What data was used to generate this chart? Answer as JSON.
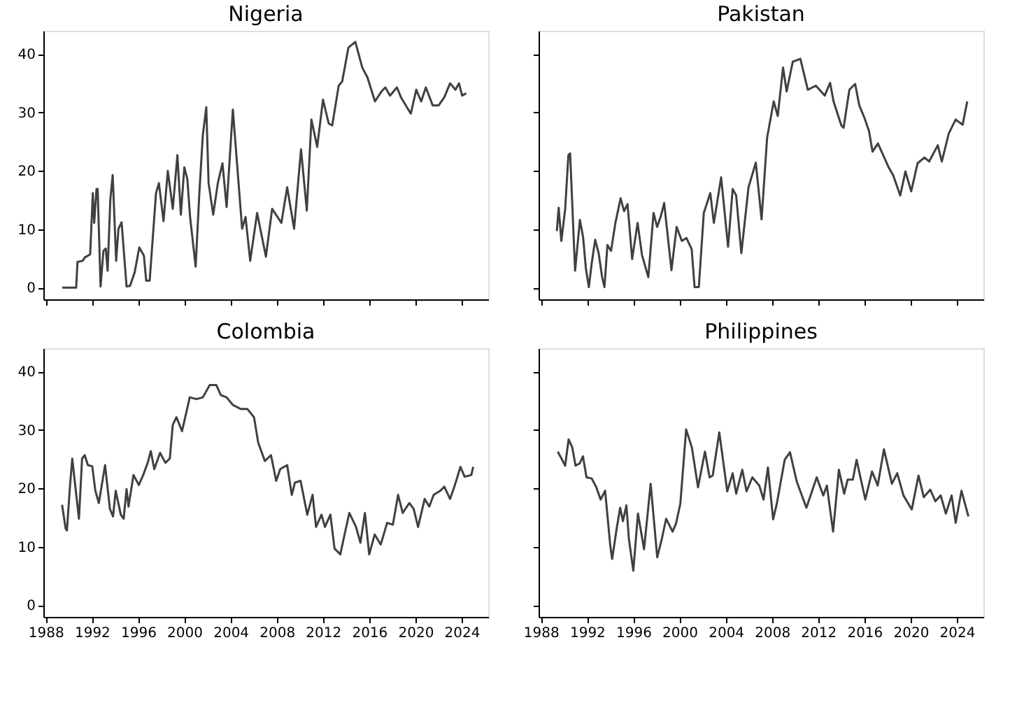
{
  "chart_data": [
    {
      "type": "line",
      "title": "Nigeria",
      "x": [
        1989.43,
        1990.64,
        1990.75,
        1991.2,
        1991.4,
        1991.85,
        1992.08,
        1992.2,
        1992.4,
        1992.5,
        1992.75,
        1993.0,
        1993.2,
        1993.36,
        1993.6,
        1993.8,
        1994.1,
        1994.3,
        1994.57,
        1995.0,
        1995.3,
        1995.7,
        1996.1,
        1996.5,
        1996.7,
        1997.0,
        1997.55,
        1997.8,
        1998.2,
        1998.57,
        1999.0,
        1999.4,
        1999.7,
        2000.0,
        2000.26,
        2000.5,
        2000.98,
        2001.3,
        2001.6,
        2001.9,
        2002.1,
        2002.5,
        2002.9,
        2003.3,
        2003.66,
        2004.2,
        2005.0,
        2005.3,
        2005.7,
        2006.3,
        2007.06,
        2007.6,
        2008.4,
        2008.9,
        2009.5,
        2010.1,
        2010.6,
        2011.0,
        2011.5,
        2012.0,
        2012.5,
        2012.8,
        2013.36,
        2013.66,
        2014.2,
        2014.8,
        2015.4,
        2015.85,
        2016.5,
        2017.06,
        2017.4,
        2017.8,
        2018.4,
        2018.75,
        2019.6,
        2020.07,
        2020.5,
        2020.9,
        2021.5,
        2022.0,
        2022.5,
        2023.0,
        2023.47,
        2023.77,
        2024.04,
        2024.4
      ],
      "series": [
        {
          "color": "#404040",
          "values": [
            0,
            0,
            4.4,
            4.6,
            5.2,
            5.7,
            16.2,
            11.1,
            16.9,
            16.9,
            0.2,
            6.3,
            6.7,
            2.9,
            15.2,
            19.3,
            4.6,
            10.1,
            11.2,
            0.2,
            0.3,
            2.6,
            6.9,
            5.5,
            1.2,
            1.2,
            16.2,
            17.9,
            11.4,
            20.0,
            13.5,
            22.7,
            12.5,
            20.6,
            18.6,
            12.1,
            3.6,
            16.2,
            26.1,
            30.9,
            17.9,
            12.5,
            17.9,
            21.3,
            13.8,
            30.5,
            10.1,
            12.1,
            4.6,
            12.8,
            5.3,
            13.5,
            11.1,
            17.2,
            10.1,
            23.7,
            13.2,
            28.8,
            24.1,
            32.2,
            28.1,
            27.8,
            34.6,
            35.3,
            41.1,
            42.1,
            37.7,
            36.0,
            31.9,
            33.6,
            34.3,
            32.9,
            34.3,
            32.6,
            29.8,
            33.9,
            31.9,
            34.3,
            31.2,
            31.2,
            32.6,
            35.0,
            33.9,
            35.0,
            32.9,
            33.3
          ]
        }
      ],
      "xlim": [
        1987.8,
        2026.3
      ],
      "ylim": [
        -2,
        44
      ],
      "xticks": [
        1988,
        1992,
        1996,
        2000,
        2004,
        2008,
        2012,
        2016,
        2020,
        2024
      ],
      "yticks": [
        0,
        10,
        20,
        30,
        40
      ],
      "tick_labels": "y"
    },
    {
      "type": "line",
      "title": "Pakistan",
      "x": [
        1989.38,
        1989.54,
        1989.77,
        1990.1,
        1990.38,
        1990.53,
        1990.96,
        1991.38,
        1991.65,
        1991.9,
        1992.15,
        1992.4,
        1992.7,
        1993.0,
        1993.3,
        1993.5,
        1993.76,
        1994.07,
        1994.45,
        1994.9,
        1995.2,
        1995.5,
        1995.9,
        1996.37,
        1996.75,
        1997.3,
        1997.75,
        1998.06,
        1998.36,
        1998.67,
        1999.3,
        1999.75,
        2000.2,
        2000.6,
        2001.05,
        2001.3,
        2001.67,
        2002.1,
        2002.66,
        2002.97,
        2003.6,
        2004.2,
        2004.6,
        2004.9,
        2005.35,
        2005.97,
        2006.6,
        2007.1,
        2007.58,
        2008.15,
        2008.5,
        2008.96,
        2009.27,
        2009.8,
        2010.46,
        2011.1,
        2011.8,
        2012.57,
        2013.03,
        2013.33,
        2014.0,
        2014.2,
        2014.7,
        2015.2,
        2015.56,
        2016.0,
        2016.4,
        2016.7,
        2017.17,
        2017.56,
        2018.1,
        2018.5,
        2019.1,
        2019.55,
        2020.05,
        2020.6,
        2021.2,
        2021.6,
        2022.35,
        2022.7,
        2023.3,
        2023.9,
        2024.5,
        2024.9
      ],
      "series": [
        {
          "color": "#404040",
          "values": [
            9.7,
            13.7,
            8.0,
            13.4,
            22.7,
            23.0,
            2.9,
            11.6,
            8.7,
            3.2,
            0.1,
            4.2,
            8.2,
            5.9,
            1.8,
            0.1,
            7.3,
            6.3,
            11.1,
            15.3,
            13.1,
            14.3,
            4.9,
            11.1,
            5.6,
            1.8,
            12.8,
            10.4,
            12.1,
            14.5,
            3.0,
            10.4,
            8.0,
            8.5,
            6.6,
            0.1,
            0.1,
            12.8,
            16.2,
            11.1,
            18.9,
            7.0,
            16.9,
            15.8,
            5.9,
            17.2,
            21.4,
            11.7,
            25.7,
            31.9,
            29.4,
            37.7,
            33.6,
            38.7,
            39.2,
            33.9,
            34.6,
            32.9,
            35.1,
            31.9,
            27.8,
            27.4,
            33.9,
            34.9,
            31.2,
            29.1,
            26.8,
            23.3,
            24.7,
            23.0,
            20.6,
            19.2,
            15.8,
            19.9,
            16.5,
            21.3,
            22.3,
            21.6,
            24.4,
            21.6,
            26.4,
            28.8,
            27.9,
            31.9
          ]
        }
      ],
      "xlim": [
        1987.8,
        2026.3
      ],
      "ylim": [
        -2,
        44
      ],
      "xticks": [
        1988,
        1992,
        1996,
        2000,
        2004,
        2008,
        2012,
        2016,
        2020,
        2024
      ],
      "yticks": [
        0,
        10,
        20,
        30,
        40
      ],
      "tick_labels": false
    },
    {
      "type": "line",
      "title": "Colombia",
      "x": [
        1989.42,
        1989.73,
        1989.84,
        1990.1,
        1990.3,
        1990.88,
        1991.15,
        1991.38,
        1991.65,
        1992.03,
        1992.3,
        1992.6,
        1993.14,
        1993.56,
        1993.83,
        1994.06,
        1994.5,
        1994.75,
        1995.0,
        1995.17,
        1995.6,
        1996.06,
        1996.44,
        1996.83,
        1997.1,
        1997.4,
        1997.9,
        1998.36,
        1998.74,
        1999.0,
        1999.32,
        1999.8,
        2000.47,
        2001.05,
        2001.6,
        2002.2,
        2002.77,
        2003.16,
        2003.66,
        2004.2,
        2004.9,
        2005.46,
        2006.03,
        2006.4,
        2006.97,
        2007.5,
        2007.95,
        2008.3,
        2008.9,
        2009.3,
        2009.57,
        2010.06,
        2010.64,
        2011.1,
        2011.4,
        2011.87,
        2012.17,
        2012.64,
        2013.0,
        2013.5,
        2013.9,
        2014.28,
        2014.86,
        2015.24,
        2015.63,
        2016.0,
        2016.47,
        2017.0,
        2017.55,
        2018.05,
        2018.5,
        2018.9,
        2019.47,
        2019.85,
        2020.23,
        2020.8,
        2021.2,
        2021.58,
        2022.15,
        2022.5,
        2023.0,
        2023.37,
        2023.9,
        2024.26,
        2024.84,
        2025.0
      ],
      "series": [
        {
          "color": "#404040",
          "values": [
            17.2,
            13.1,
            12.8,
            20.3,
            25.1,
            14.8,
            25.1,
            25.7,
            24.0,
            23.8,
            19.6,
            17.5,
            24.0,
            16.5,
            15.2,
            19.6,
            15.5,
            14.8,
            19.9,
            16.9,
            22.3,
            20.6,
            22.3,
            24.4,
            26.4,
            23.3,
            26.1,
            24.4,
            25.1,
            30.9,
            32.2,
            29.8,
            35.6,
            35.3,
            35.6,
            37.7,
            37.7,
            36.0,
            35.6,
            34.3,
            33.6,
            33.6,
            32.2,
            27.8,
            24.7,
            25.7,
            21.3,
            23.3,
            24.0,
            18.9,
            21.0,
            21.3,
            15.5,
            18.9,
            13.4,
            15.5,
            13.4,
            15.5,
            9.7,
            8.7,
            12.4,
            15.8,
            13.4,
            10.7,
            15.8,
            8.7,
            12.1,
            10.4,
            14.1,
            13.8,
            18.9,
            15.8,
            17.5,
            16.5,
            13.4,
            18.2,
            16.9,
            18.9,
            19.6,
            20.3,
            18.2,
            20.3,
            23.7,
            22.0,
            22.3,
            23.7
          ]
        }
      ],
      "xlim": [
        1987.8,
        2026.3
      ],
      "ylim": [
        -2,
        44
      ],
      "xticks": [
        1988,
        1992,
        1996,
        2000,
        2004,
        2008,
        2012,
        2016,
        2020,
        2024
      ],
      "yticks": [
        0,
        10,
        20,
        30,
        40
      ]
    },
    {
      "type": "line",
      "title": "Philippines",
      "x": [
        1989.46,
        1989.84,
        1990.1,
        1990.4,
        1990.72,
        1991.0,
        1991.37,
        1991.64,
        1991.95,
        1992.4,
        1992.8,
        1993.17,
        1993.56,
        1994.0,
        1994.17,
        1994.55,
        1994.86,
        1995.1,
        1995.4,
        1995.62,
        1996.0,
        1996.4,
        1996.93,
        1997.5,
        1998.07,
        1998.46,
        1998.84,
        1999.4,
        1999.7,
        2000.07,
        2000.57,
        2001.07,
        2001.6,
        2002.2,
        2002.6,
        2002.87,
        2003.44,
        2004.13,
        2004.6,
        2004.9,
        2005.43,
        2005.8,
        2006.3,
        2006.9,
        2007.27,
        2007.65,
        2008.1,
        2008.42,
        2009.1,
        2009.56,
        2010.14,
        2010.98,
        2011.87,
        2012.44,
        2012.75,
        2013.29,
        2013.79,
        2014.25,
        2014.55,
        2015.0,
        2015.32,
        2016.08,
        2016.66,
        2017.15,
        2017.69,
        2018.38,
        2018.84,
        2019.38,
        2020.1,
        2020.68,
        2021.14,
        2021.7,
        2022.14,
        2022.6,
        2023.05,
        2023.55,
        2023.9,
        2024.4,
        2025.0
      ],
      "series": [
        {
          "color": "#404040",
          "values": [
            26.3,
            24.9,
            23.9,
            28.4,
            27.0,
            23.9,
            24.3,
            25.5,
            21.9,
            21.7,
            20.2,
            18.1,
            19.6,
            10.3,
            7.9,
            13.0,
            16.7,
            14.4,
            17.1,
            11.3,
            5.9,
            15.7,
            9.6,
            20.8,
            8.2,
            11.3,
            14.8,
            12.6,
            14.0,
            17.4,
            30.1,
            27.0,
            20.2,
            26.3,
            21.9,
            22.2,
            29.6,
            19.5,
            22.6,
            19.1,
            23.2,
            19.5,
            21.9,
            20.5,
            18.1,
            23.6,
            14.7,
            17.4,
            24.9,
            26.2,
            21.2,
            16.7,
            21.9,
            18.8,
            20.5,
            12.6,
            23.2,
            19.1,
            21.5,
            21.5,
            24.9,
            18.1,
            22.9,
            20.5,
            26.7,
            20.8,
            22.6,
            18.8,
            16.4,
            22.2,
            18.5,
            19.8,
            17.8,
            18.8,
            15.7,
            18.8,
            14.1,
            19.6,
            15.2
          ]
        }
      ],
      "xlim": [
        1987.8,
        2026.3
      ],
      "ylim": [
        -2,
        44
      ],
      "xticks": [
        1988,
        1992,
        1996,
        2000,
        2004,
        2008,
        2012,
        2016,
        2020,
        2024
      ],
      "yticks": [
        0,
        10,
        20,
        30,
        40
      ],
      "tick_labels": "x"
    }
  ]
}
